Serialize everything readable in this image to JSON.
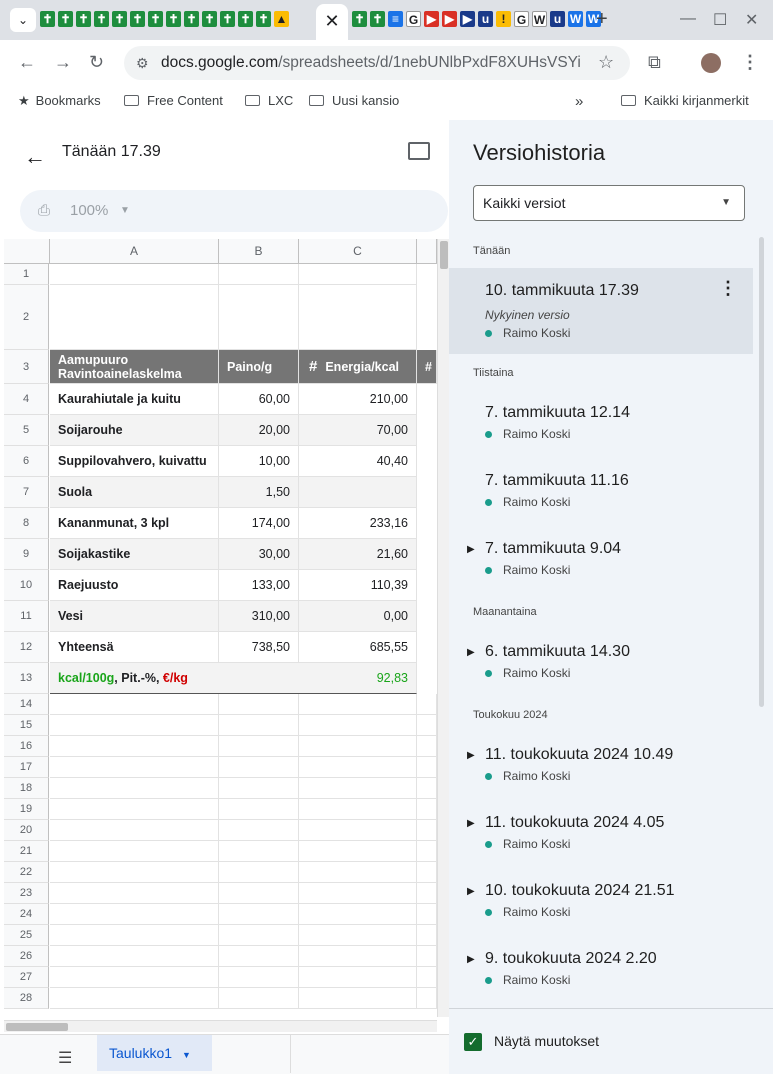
{
  "browser": {
    "active_tab_icon": "close-icon",
    "new_tab": "+",
    "url_host": "docs.google.com",
    "url_path": "/spreadsheets/d/1nebUNlbPxdF8XUHsVSYiy...",
    "bookmarks": [
      "Bookmarks",
      "Free Content",
      "LXC",
      "Uusi kansio"
    ],
    "all_bookmarks": "Kaikki kirjanmerkit"
  },
  "doc": {
    "title": "Tänään 17.39",
    "zoom": "100%"
  },
  "sheet": {
    "columns": [
      "A",
      "B",
      "C"
    ],
    "header": {
      "a": "Aamupuuro Ravintoainelaskelma",
      "b": "Paino/g",
      "c": "Energia/kcal",
      "c_icon": "#"
    },
    "rows": [
      {
        "n": "4",
        "a": "Kaurahiutale ja kuitu",
        "b": "60,00",
        "c": "210,00"
      },
      {
        "n": "5",
        "a": "Soijarouhe",
        "b": "20,00",
        "c": "70,00"
      },
      {
        "n": "6",
        "a": "Suppilovahvero, kuivattu",
        "b": "10,00",
        "c": "40,40"
      },
      {
        "n": "7",
        "a": "Suola",
        "b": "1,50",
        "c": ""
      },
      {
        "n": "8",
        "a": "Kananmunat, 3 kpl",
        "b": "174,00",
        "c": "233,16"
      },
      {
        "n": "9",
        "a": "Soijakastike",
        "b": "30,00",
        "c": "21,60"
      },
      {
        "n": "10",
        "a": "Raejuusto",
        "b": "133,00",
        "c": "110,39"
      },
      {
        "n": "11",
        "a": "Vesi",
        "b": "310,00",
        "c": "0,00"
      },
      {
        "n": "12",
        "a": "Yhteensä",
        "b": "738,50",
        "c": "685,55"
      }
    ],
    "row13": {
      "green": "kcal/100g",
      "mid": ", Pit.-%, ",
      "red": "€/kg",
      "c": "92,83"
    },
    "empty_rows": [
      "14",
      "15",
      "16",
      "17",
      "18",
      "19",
      "20",
      "21",
      "22",
      "23",
      "24",
      "25",
      "26",
      "27",
      "28"
    ],
    "tab_name": "Taulukko1"
  },
  "history": {
    "title": "Versiohistoria",
    "filter": "Kaikki versiot",
    "groups": {
      "today": "Tänään",
      "tue": "Tiistaina",
      "mon": "Maanantaina",
      "may": "Toukokuu 2024"
    },
    "versions": [
      {
        "title": "10. tammikuuta 17.39",
        "sub": "Nykyinen versio",
        "author": "Raimo Koski"
      },
      {
        "title": "7. tammikuuta 12.14",
        "author": "Raimo Koski"
      },
      {
        "title": "7. tammikuuta 11.16",
        "author": "Raimo Koski"
      },
      {
        "title": "7. tammikuuta 9.04",
        "author": "Raimo Koski"
      },
      {
        "title": "6. tammikuuta 14.30",
        "author": "Raimo Koski"
      },
      {
        "title": "11. toukokuuta 2024 10.49",
        "author": "Raimo Koski"
      },
      {
        "title": "11. toukokuuta 2024 4.05",
        "author": "Raimo Koski"
      },
      {
        "title": "10. toukokuuta 2024 21.51",
        "author": "Raimo Koski"
      },
      {
        "title": "9. toukokuuta 2024 2.20",
        "author": "Raimo Koski"
      }
    ],
    "show_changes": "Näytä muutokset"
  },
  "colors": {
    "accent": "#0b57d0",
    "header_gray": "#757575",
    "green": "#1aa51a",
    "red": "#d00000",
    "panel": "#f0f4f9"
  }
}
